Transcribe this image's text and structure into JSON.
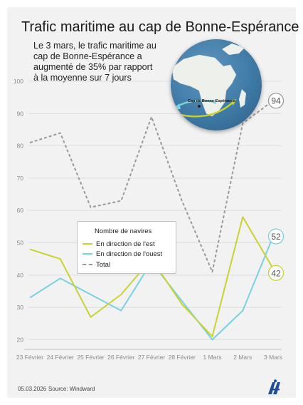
{
  "title": "Trafic maritime au cap de Bonne-Espérance",
  "annotation": "Le 3 mars, le trafic maritime au cap de Bonne-Espérance a augmenté de 35% par rapport à la moyenne sur 7 jours",
  "map_label": "Cap de Bonne-Espérance",
  "footer": {
    "date": "05.03.2026",
    "source": "Source: Windward"
  },
  "logo": "aa-logo",
  "colors": {
    "east": "#c9d230",
    "west": "#78d2e0",
    "total": "#9a9a9a",
    "background": "#f2f2f2"
  },
  "chart_data": {
    "type": "line",
    "title": "Trafic maritime au cap de Bonne-Espérance",
    "categories": [
      "23 Février",
      "24 Février",
      "25 Février",
      "26 Février",
      "27 Février",
      "28 Février",
      "1 Mars",
      "2 Mars",
      "3 Mars"
    ],
    "ylim": [
      17,
      102
    ],
    "yticks": [
      20,
      30,
      40,
      50,
      60,
      70,
      80,
      90,
      100
    ],
    "grid": "horizontal",
    "legend_title": "Nombre de navires",
    "legend_position": "center-left",
    "series": [
      {
        "key": "east",
        "name": "En direction de l'est",
        "style": "solid",
        "values": [
          48,
          45,
          27,
          34,
          45,
          31,
          21,
          58,
          42
        ]
      },
      {
        "key": "west",
        "name": "En direction de l'ouest",
        "style": "solid",
        "values": [
          33,
          39,
          34,
          29,
          44,
          32,
          20,
          29,
          52
        ]
      },
      {
        "key": "total",
        "name": "Total",
        "style": "dashed",
        "values": [
          81,
          84,
          61,
          63,
          89,
          63,
          41,
          87,
          94
        ]
      }
    ],
    "end_labels": [
      {
        "series": "total",
        "value": "94"
      },
      {
        "series": "west",
        "value": "52"
      },
      {
        "series": "east",
        "value": "42"
      }
    ]
  }
}
